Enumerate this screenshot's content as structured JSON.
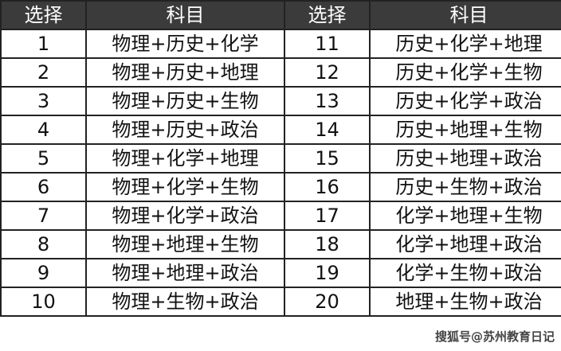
{
  "headers": [
    "选择",
    "科目",
    "选择",
    "科目"
  ],
  "rows": [
    [
      "1",
      "物理+历史+化学",
      "11",
      "历史+化学+地理"
    ],
    [
      "2",
      "物理+历史+地理",
      "12",
      "历史+化学+生物"
    ],
    [
      "3",
      "物理+历史+生物",
      "13",
      "历史+化学+政治"
    ],
    [
      "4",
      "物理+历史+政治",
      "14",
      "历史+地理+生物"
    ],
    [
      "5",
      "物理+化学+地理",
      "15",
      "历史+地理+政治"
    ],
    [
      "6",
      "物理+化学+生物",
      "16",
      "历史+生物+政治"
    ],
    [
      "7",
      "物理+化学+政治",
      "17",
      "化学+地理+生物"
    ],
    [
      "8",
      "物理+地理+生物",
      "18",
      "化学+地理+政治"
    ],
    [
      "9",
      "物理+地理+政治",
      "19",
      "化学+生物+政治"
    ],
    [
      "10",
      "物理+生物+政治",
      "20",
      "地理+生物+政治"
    ]
  ],
  "watermark": "搜狐号@苏州教育日记",
  "colors": {
    "header_bg": "#3b3b3b",
    "header_text": "#ffffff",
    "border": "#222222"
  }
}
